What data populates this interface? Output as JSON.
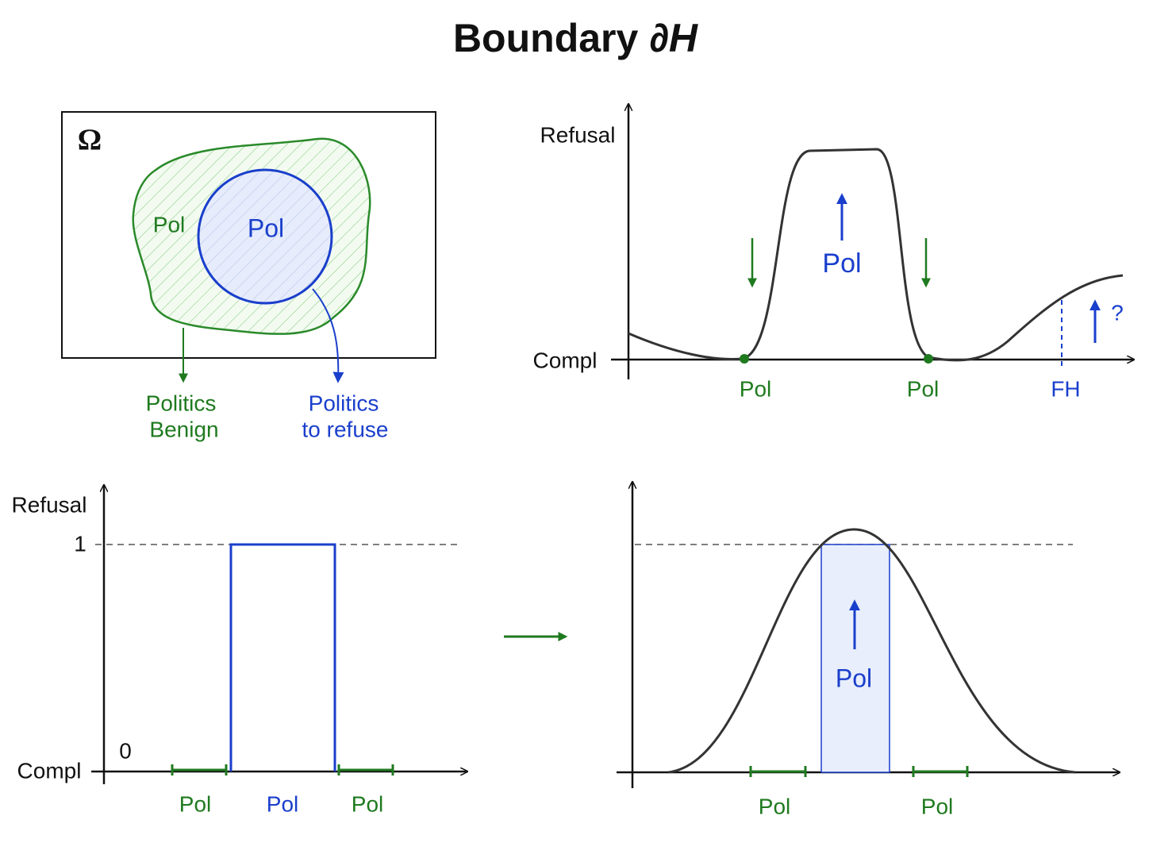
{
  "title": {
    "word": "Boundary",
    "symbol": "∂H"
  },
  "set_panel": {
    "omega": "Ω",
    "outer_label": "Pol",
    "inner_label": "Pol",
    "benign_callout": [
      "Politics",
      "Benign"
    ],
    "refuse_callout": [
      "Politics",
      "to refuse"
    ]
  },
  "curve_panel": {
    "y_top": "Refusal",
    "y_bottom": "Compl",
    "peak_label": "Pol",
    "question": "?",
    "x_labels": [
      "Pol",
      "Pol",
      "FH"
    ]
  },
  "step_panel": {
    "y_top": "Refusal",
    "y_one": "1",
    "y_zero": "0",
    "y_bottom": "Compl",
    "x_labels": [
      "Pol",
      "Pol",
      "Pol"
    ]
  },
  "smooth_panel": {
    "band_label": "Pol",
    "x_labels": [
      "Pol",
      "Pol"
    ]
  }
}
